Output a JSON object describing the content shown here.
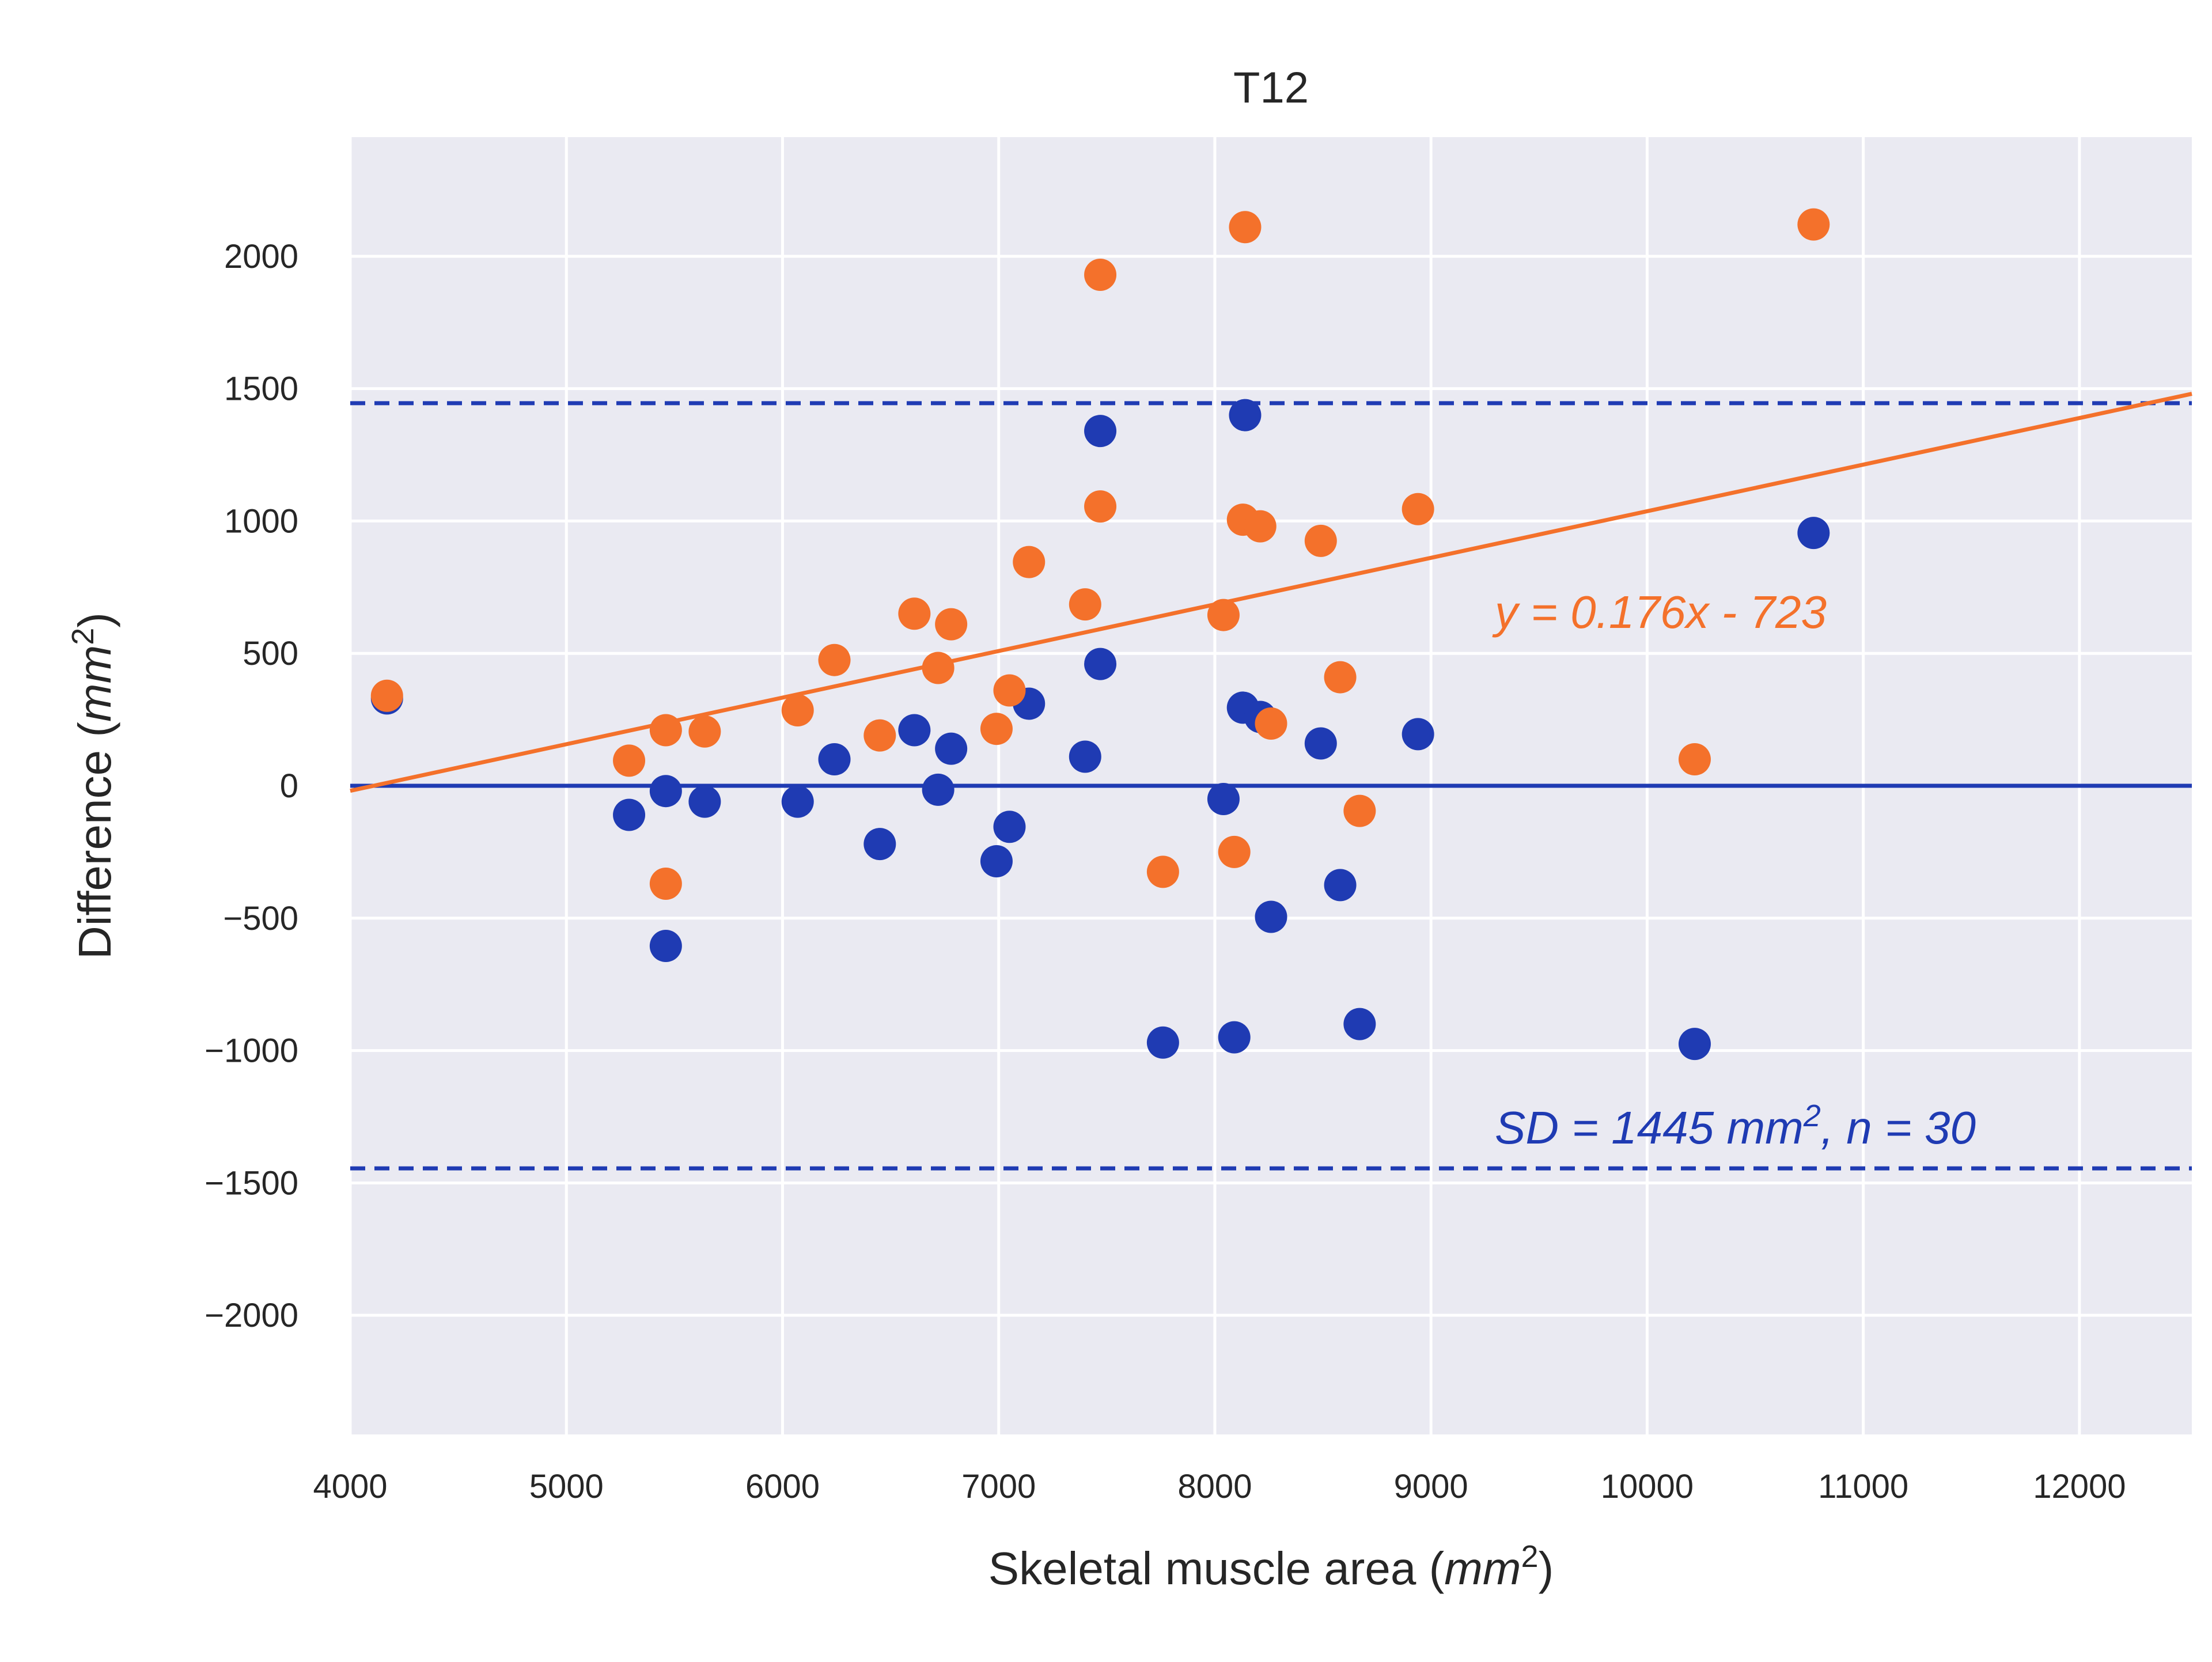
{
  "chart_data": {
    "type": "scatter",
    "title": "T12",
    "xlabel": "Skeletal muscle area ",
    "xlabel_unit": "mm",
    "xlabel_exp": "2",
    "ylabel": "Difference ",
    "ylabel_unit": "mm",
    "ylabel_exp": "2",
    "xlim": [
      4000,
      12520
    ],
    "ylim": [
      -2450,
      2450
    ],
    "x_ticks": [
      4000,
      5000,
      6000,
      7000,
      8000,
      9000,
      10000,
      11000,
      12000
    ],
    "y_ticks": [
      -2000,
      -1500,
      -1000,
      -500,
      0,
      500,
      1000,
      1500,
      2000
    ],
    "x_tick_labels": [
      "4000",
      "5000",
      "6000",
      "7000",
      "8000",
      "9000",
      "10000",
      "11000",
      "12000"
    ],
    "y_tick_labels": [
      "−2000",
      "−1500",
      "−1000",
      "−500",
      "0",
      "500",
      "1000",
      "1500",
      "2000"
    ],
    "grid": true,
    "colors": {
      "background": "#eaeaf2",
      "grid": "#ffffff",
      "blue": "#1f3bb3",
      "orange": "#f4712b"
    },
    "series": [
      {
        "color": "blue",
        "points": [
          [
            4170,
            330
          ],
          [
            5290,
            -110
          ],
          [
            5460,
            -20
          ],
          [
            5460,
            -605
          ],
          [
            5640,
            -60
          ],
          [
            6070,
            -60
          ],
          [
            6240,
            100
          ],
          [
            6450,
            -220
          ],
          [
            6610,
            210
          ],
          [
            6720,
            -15
          ],
          [
            6780,
            140
          ],
          [
            6990,
            -285
          ],
          [
            7050,
            -155
          ],
          [
            7140,
            310
          ],
          [
            7400,
            110
          ],
          [
            7470,
            1340
          ],
          [
            7470,
            460
          ],
          [
            7760,
            -970
          ],
          [
            8040,
            -50
          ],
          [
            8090,
            -950
          ],
          [
            8130,
            295
          ],
          [
            8140,
            1400
          ],
          [
            8210,
            260
          ],
          [
            8260,
            -495
          ],
          [
            8490,
            160
          ],
          [
            8580,
            -375
          ],
          [
            8670,
            -900
          ],
          [
            8940,
            195
          ],
          [
            10220,
            -975
          ],
          [
            10770,
            955
          ]
        ]
      },
      {
        "color": "orange",
        "points": [
          [
            4170,
            340
          ],
          [
            5290,
            95
          ],
          [
            5460,
            210
          ],
          [
            5460,
            -370
          ],
          [
            5640,
            205
          ],
          [
            6070,
            285
          ],
          [
            6240,
            475
          ],
          [
            6450,
            190
          ],
          [
            6610,
            650
          ],
          [
            6720,
            445
          ],
          [
            6780,
            610
          ],
          [
            6990,
            215
          ],
          [
            7050,
            360
          ],
          [
            7140,
            845
          ],
          [
            7400,
            685
          ],
          [
            7470,
            1930
          ],
          [
            7470,
            1055
          ],
          [
            7760,
            -325
          ],
          [
            8040,
            645
          ],
          [
            8090,
            -250
          ],
          [
            8130,
            1005
          ],
          [
            8140,
            2110
          ],
          [
            8210,
            980
          ],
          [
            8260,
            235
          ],
          [
            8490,
            925
          ],
          [
            8580,
            410
          ],
          [
            8670,
            -95
          ],
          [
            8940,
            1045
          ],
          [
            10220,
            100
          ],
          [
            10770,
            2120
          ]
        ]
      }
    ],
    "reference_lines": {
      "mean": 0,
      "sd_upper": 1445,
      "sd_lower": -1445
    },
    "regression": {
      "slope": 0.176,
      "intercept": -723,
      "label": "y = 0.176x - 723"
    },
    "sd_annotation": {
      "prefix": "SD = 1445 ",
      "unit": "mm",
      "exp": "2",
      "suffix": ", n = 30"
    }
  }
}
